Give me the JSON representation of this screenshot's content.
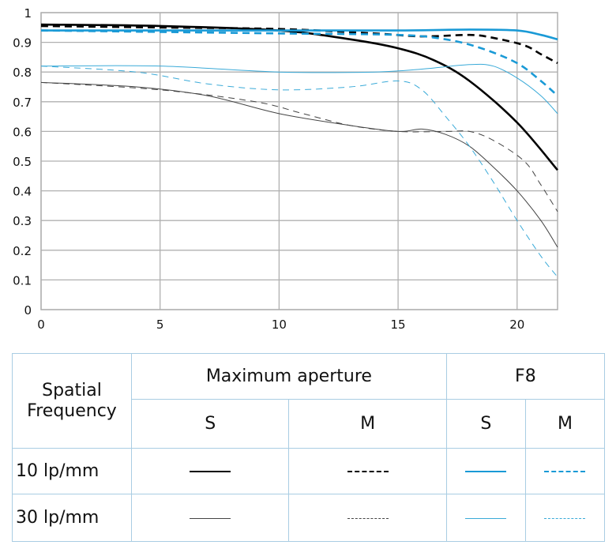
{
  "chart_data": {
    "type": "line",
    "title": "",
    "xlabel": "",
    "ylabel": "",
    "xlim": [
      0,
      21.7
    ],
    "ylim": [
      0,
      1
    ],
    "grid": true,
    "x_ticks": [
      "0",
      "5",
      "10",
      "15",
      "20"
    ],
    "y_ticks": [
      "0",
      "0.1",
      "0.2",
      "0.3",
      "0.4",
      "0.5",
      "0.6",
      "0.7",
      "0.8",
      "0.9",
      "1"
    ],
    "series": [
      {
        "name": "10 lp/mm S Maximum aperture",
        "color": "#000000",
        "width": "thick",
        "dash": false,
        "x": [
          0,
          5,
          10,
          13,
          15,
          16.5,
          18,
          20,
          21.7
        ],
        "y": [
          0.96,
          0.955,
          0.94,
          0.91,
          0.88,
          0.84,
          0.77,
          0.63,
          0.47
        ]
      },
      {
        "name": "10 lp/mm M Maximum aperture",
        "color": "#000000",
        "width": "thick",
        "dash": true,
        "x": [
          0,
          5,
          10,
          14,
          16,
          18,
          19,
          20.3,
          21,
          21.7
        ],
        "y": [
          0.955,
          0.95,
          0.945,
          0.93,
          0.92,
          0.925,
          0.915,
          0.89,
          0.86,
          0.83
        ]
      },
      {
        "name": "10 lp/mm S F8",
        "color": "#1a9ad6",
        "width": "thick",
        "dash": false,
        "x": [
          0,
          5,
          10,
          15,
          18,
          20,
          21,
          21.7
        ],
        "y": [
          0.94,
          0.94,
          0.94,
          0.94,
          0.943,
          0.94,
          0.925,
          0.91
        ]
      },
      {
        "name": "10 lp/mm M F8",
        "color": "#1a9ad6",
        "width": "thick",
        "dash": true,
        "x": [
          0,
          5,
          10,
          15,
          17,
          18.5,
          20,
          21,
          21.7
        ],
        "y": [
          0.94,
          0.935,
          0.93,
          0.925,
          0.91,
          0.88,
          0.83,
          0.77,
          0.72
        ]
      },
      {
        "name": "30 lp/mm S Maximum aperture",
        "color": "#444444",
        "width": "thin",
        "dash": false,
        "x": [
          0,
          4,
          7,
          10,
          13,
          15,
          16,
          17,
          18,
          19,
          20,
          21,
          21.7
        ],
        "y": [
          0.765,
          0.75,
          0.72,
          0.66,
          0.62,
          0.6,
          0.608,
          0.59,
          0.55,
          0.48,
          0.4,
          0.3,
          0.21
        ]
      },
      {
        "name": "30 lp/mm M Maximum aperture",
        "color": "#444444",
        "width": "thin",
        "dash": true,
        "x": [
          0,
          5,
          9,
          11,
          13,
          15,
          17,
          18,
          19,
          20.3,
          21,
          21.7
        ],
        "y": [
          0.765,
          0.74,
          0.7,
          0.66,
          0.62,
          0.6,
          0.6,
          0.6,
          0.57,
          0.5,
          0.42,
          0.33
        ]
      },
      {
        "name": "30 lp/mm S F8",
        "color": "#3aaad8",
        "width": "thin",
        "dash": false,
        "x": [
          0,
          5,
          10,
          14,
          16,
          18,
          19,
          20,
          21,
          21.7
        ],
        "y": [
          0.82,
          0.82,
          0.8,
          0.8,
          0.81,
          0.825,
          0.82,
          0.78,
          0.72,
          0.66
        ]
      },
      {
        "name": "30 lp/mm M F8",
        "color": "#3aaad8",
        "width": "thin",
        "dash": true,
        "x": [
          0,
          4,
          7,
          10,
          13,
          15,
          16,
          17,
          18,
          19,
          20,
          21,
          21.7
        ],
        "y": [
          0.82,
          0.8,
          0.76,
          0.74,
          0.75,
          0.77,
          0.74,
          0.65,
          0.55,
          0.43,
          0.3,
          0.18,
          0.11
        ]
      }
    ]
  },
  "legend": {
    "header_label": "Spatial Frequency",
    "groups": [
      "Maximum aperture",
      "F8"
    ],
    "sub": [
      "S",
      "M",
      "S",
      "M"
    ],
    "rows": [
      "10 lp/mm",
      "30 lp/mm"
    ]
  }
}
